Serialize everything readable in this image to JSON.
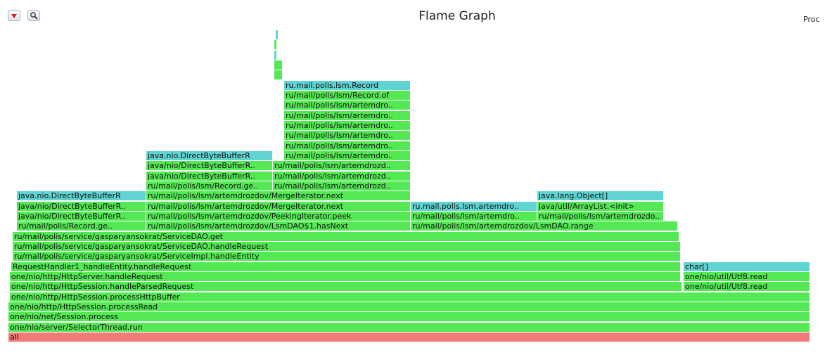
{
  "header": {
    "title": "Flame Graph",
    "status_text": "Proc"
  },
  "toolbar": {
    "reverse_icon": "triangle-down-icon",
    "search_icon": "search-icon"
  },
  "colors": {
    "green": "#55e855",
    "cyan": "#60d3d3",
    "red": "#f27a78",
    "border": "#ffffff"
  },
  "chart_data": {
    "type": "flame",
    "title": "Flame Graph",
    "total_samples": 1140,
    "frames": [
      {
        "name": "all",
        "depth": 0,
        "start": 0,
        "samples": 1140,
        "kind": "red"
      },
      {
        "name": "one/nio/server/SelectorThread.run",
        "depth": 1,
        "start": 0,
        "samples": 1140,
        "kind": "green"
      },
      {
        "name": "one/nio/net/Session.process",
        "depth": 2,
        "start": 0,
        "samples": 1140,
        "kind": "green"
      },
      {
        "name": "one/nio/http/HttpSession.processRead",
        "depth": 3,
        "start": 0,
        "samples": 1140,
        "kind": "green"
      },
      {
        "name": "one/nio/http/HttpSession.processHttpBuffer",
        "depth": 4,
        "start": 2,
        "samples": 1138,
        "kind": "green"
      },
      {
        "name": "one/nio/http/HttpSession.handleParsedRequest",
        "depth": 5,
        "start": 2,
        "samples": 956,
        "kind": "green"
      },
      {
        "name": "one/nio/util/Utf8.read",
        "depth": 5,
        "start": 960,
        "samples": 180,
        "kind": "green"
      },
      {
        "name": "one/nio/http/HttpServer.handleRequest",
        "depth": 6,
        "start": 2,
        "samples": 954,
        "kind": "green"
      },
      {
        "name": "one/nio/util/Utf8.read",
        "depth": 6,
        "start": 960,
        "samples": 180,
        "kind": "green"
      },
      {
        "name": "RequestHandler1_handleEntity.handleRequest",
        "depth": 7,
        "start": 4,
        "samples": 952,
        "kind": "green"
      },
      {
        "name": "char[]",
        "depth": 7,
        "start": 960,
        "samples": 180,
        "kind": "cyan"
      },
      {
        "name": "ru/mail/polis/service/gasparyansokrat/ServiceImpl.handleEntity",
        "depth": 8,
        "start": 6,
        "samples": 950,
        "kind": "green"
      },
      {
        "name": "ru/mail/polis/service/gasparyansokrat/ServiceDAO.handleRequest",
        "depth": 9,
        "start": 6,
        "samples": 950,
        "kind": "green"
      },
      {
        "name": "ru/mail/polis/service/gasparyansokrat/ServiceDAO.get",
        "depth": 10,
        "start": 6,
        "samples": 948,
        "kind": "green"
      },
      {
        "name": "ru/mail/polis/Record.ge..",
        "depth": 11,
        "start": 12,
        "samples": 184,
        "kind": "green"
      },
      {
        "name": "ru/mail/polis/lsm/artemdrozdov/LsmDAO$1.hasNext",
        "depth": 11,
        "start": 196,
        "samples": 376,
        "kind": "green"
      },
      {
        "name": "ru/mail/polis/lsm/artemdrozdov/LsmDAO.range",
        "depth": 11,
        "start": 572,
        "samples": 380,
        "kind": "green"
      },
      {
        "name": "java/nio/DirectByteBufferR..",
        "depth": 12,
        "start": 12,
        "samples": 184,
        "kind": "green"
      },
      {
        "name": "ru/mail/polis/lsm/artemdrozdov/PeekingIterator.peek",
        "depth": 12,
        "start": 196,
        "samples": 376,
        "kind": "green"
      },
      {
        "name": "ru/mail/polis/lsm/artemdro..",
        "depth": 12,
        "start": 572,
        "samples": 180,
        "kind": "green"
      },
      {
        "name": "ru/mail/polis/lsm/artemdrozdo..",
        "depth": 12,
        "start": 752,
        "samples": 180,
        "kind": "green"
      },
      {
        "name": "java/nio/DirectByteBufferR..",
        "depth": 13,
        "start": 12,
        "samples": 184,
        "kind": "green"
      },
      {
        "name": "ru/mail/polis/lsm/artemdrozdov/MergeIterator.next",
        "depth": 13,
        "start": 196,
        "samples": 376,
        "kind": "green"
      },
      {
        "name": "ru.mail.polis.lsm.artemdro..",
        "depth": 13,
        "start": 572,
        "samples": 180,
        "kind": "cyan"
      },
      {
        "name": "java/util/ArrayList.<init>",
        "depth": 13,
        "start": 752,
        "samples": 180,
        "kind": "green"
      },
      {
        "name": "java.nio.DirectByteBufferR",
        "depth": 14,
        "start": 12,
        "samples": 184,
        "kind": "cyan"
      },
      {
        "name": "ru/mail/polis/lsm/artemdrozdov/MergeIterator.next",
        "depth": 14,
        "start": 196,
        "samples": 376,
        "kind": "green"
      },
      {
        "name": "java.lang.Object[]",
        "depth": 14,
        "start": 752,
        "samples": 180,
        "kind": "cyan"
      },
      {
        "name": "ru/mail/polis/lsm/Record.ge..",
        "depth": 15,
        "start": 196,
        "samples": 180,
        "kind": "green"
      },
      {
        "name": "ru/mail/polis/lsm/artemdrozd..",
        "depth": 15,
        "start": 376,
        "samples": 196,
        "kind": "green"
      },
      {
        "name": "java/nio/DirectByteBufferR..",
        "depth": 16,
        "start": 196,
        "samples": 180,
        "kind": "green"
      },
      {
        "name": "ru/mail/polis/lsm/artemdrozd..",
        "depth": 16,
        "start": 376,
        "samples": 196,
        "kind": "green"
      },
      {
        "name": "java/nio/DirectByteBufferR..",
        "depth": 17,
        "start": 196,
        "samples": 180,
        "kind": "green"
      },
      {
        "name": "ru/mail/polis/lsm/artemdrozd..",
        "depth": 17,
        "start": 376,
        "samples": 196,
        "kind": "green"
      },
      {
        "name": "java.nio.DirectByteBufferR",
        "depth": 18,
        "start": 196,
        "samples": 180,
        "kind": "cyan"
      },
      {
        "name": "ru/mail/polis/lsm/artemdro..",
        "depth": 18,
        "start": 392,
        "samples": 180,
        "kind": "green"
      },
      {
        "name": "ru/mail/polis/lsm/artemdro..",
        "depth": 19,
        "start": 392,
        "samples": 180,
        "kind": "green"
      },
      {
        "name": "ru/mail/polis/lsm/artemdro..",
        "depth": 20,
        "start": 392,
        "samples": 180,
        "kind": "green"
      },
      {
        "name": "ru/mail/polis/lsm/artemdro..",
        "depth": 21,
        "start": 392,
        "samples": 180,
        "kind": "green"
      },
      {
        "name": "ru/mail/polis/lsm/artemdro..",
        "depth": 22,
        "start": 392,
        "samples": 180,
        "kind": "green"
      },
      {
        "name": "ru/mail/polis/lsm/artemdro..",
        "depth": 23,
        "start": 392,
        "samples": 180,
        "kind": "green"
      },
      {
        "name": "ru/mail/polis/lsm/Record.of",
        "depth": 24,
        "start": 392,
        "samples": 180,
        "kind": "green"
      },
      {
        "name": "ru.mail.polis.lsm.Record",
        "depth": 25,
        "start": 392,
        "samples": 180,
        "kind": "cyan"
      },
      {
        "name": "",
        "depth": 26,
        "start": 378,
        "samples": 12,
        "kind": "green"
      },
      {
        "name": "",
        "depth": 27,
        "start": 378,
        "samples": 12,
        "kind": "green"
      },
      {
        "name": "",
        "depth": 28,
        "start": 378,
        "samples": 4,
        "kind": "cyan"
      },
      {
        "name": "",
        "depth": 29,
        "start": 378,
        "samples": 4,
        "kind": "green"
      },
      {
        "name": "",
        "depth": 30,
        "start": 380,
        "samples": 4,
        "kind": "cyan"
      }
    ]
  }
}
